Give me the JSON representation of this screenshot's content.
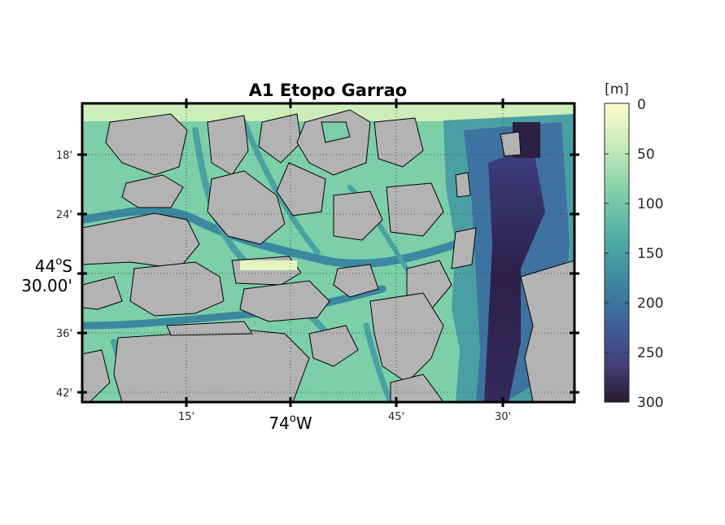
{
  "title": "A1 Etopo Garrao",
  "map": {
    "x_ticks": [
      "15'",
      "30'",
      "45'",
      "30'"
    ],
    "x_major_label": {
      "deg": "74",
      "sup": "o",
      "hemi": "W"
    },
    "y_ticks": [
      "18'",
      "24'",
      "36'",
      "42'"
    ],
    "y_major_label": {
      "deg": "44",
      "sup": "o",
      "hemi": "S",
      "minutes": "30.00'"
    },
    "land_color": "#b3b3b3",
    "grid": "dotted",
    "projection_note": "Mercator-like lat/lon frame with coastline outlines"
  },
  "colorbar": {
    "unit": "[m]",
    "ticks": [
      "0",
      "50",
      "100",
      "150",
      "200",
      "250",
      "300"
    ],
    "range": [
      0,
      300
    ],
    "colormap": "deep",
    "stops": [
      "#fdfdcc",
      "#c8ecb8",
      "#7fcfa9",
      "#4eaba5",
      "#3d86a0",
      "#3f5f99",
      "#433e78",
      "#281a2c"
    ]
  }
}
